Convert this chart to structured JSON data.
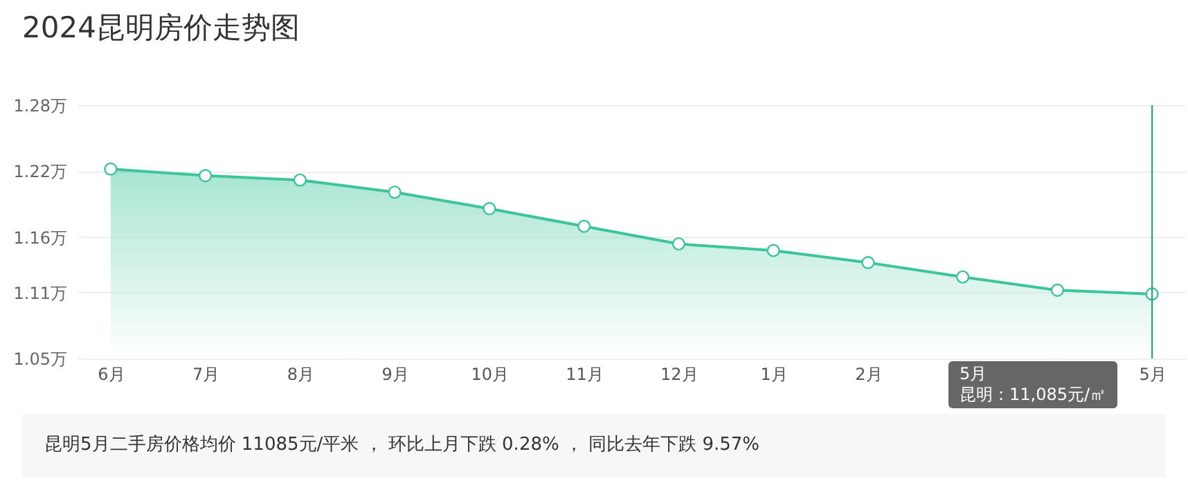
{
  "chart_data": {
    "type": "area",
    "title": "2024昆明房价走势图",
    "categories": [
      "6月",
      "7月",
      "8月",
      "9月",
      "10月",
      "11月",
      "12月",
      "1月",
      "2月",
      null,
      null,
      "5月"
    ],
    "series": [
      {
        "color": "#3cc49a",
        "values": [
          1.222,
          1.216,
          1.212,
          1.201,
          1.186,
          1.17,
          1.154,
          1.148,
          1.137,
          1.124,
          1.112,
          1.1085
        ]
      }
    ],
    "ylim": [
      1.05,
      1.28
    ],
    "yticks": [
      {
        "value": 1.05,
        "label": "1.05万"
      },
      {
        "value": 1.11,
        "label": "1.11万"
      },
      {
        "value": 1.16,
        "label": "1.16万"
      },
      {
        "value": 1.22,
        "label": "1.22万"
      },
      {
        "value": 1.28,
        "label": "1.28万"
      }
    ],
    "grid": "y",
    "marker": "circle",
    "ref_lines": [
      {
        "axis": "x",
        "value": "5月",
        "color": "#3a9f8c"
      }
    ],
    "annotations": [
      "5月",
      "昆明：11,085元/㎡",
      "昆明5月二手房价格均价 11085元/平米 ， 环比上月下跌 0.28% ， 同比去年下跌 9.57%"
    ]
  }
}
